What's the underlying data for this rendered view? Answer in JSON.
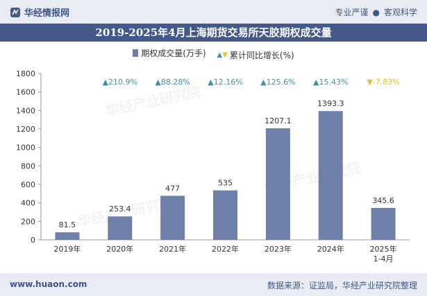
{
  "header": {
    "brand": "华经情报网",
    "tagline_left": "专业严谨",
    "tagline_right": "客观科学"
  },
  "title": "2019-2025年4月上海期货交易所天胶期权成交量",
  "legend": {
    "bar_label": "期权成交量(万手)",
    "line_label": "累计同比增长(%)"
  },
  "footer": {
    "website": "www.huaon.com",
    "source": "数据来源：证监局，华经产业研究院整理"
  },
  "colors": {
    "bar": "#6e7fa9",
    "up": "#3f93a2",
    "down": "#e8c12a",
    "header_bg": "#44598a"
  },
  "chart_data": {
    "type": "bar",
    "title": "2019-2025年4月上海期货交易所天胶期权成交量",
    "categories": [
      "2019年",
      "2020年",
      "2021年",
      "2022年",
      "2023年",
      "2024年",
      "2025年 1-4月"
    ],
    "category_lines": [
      [
        "2019年"
      ],
      [
        "2020年"
      ],
      [
        "2021年"
      ],
      [
        "2022年"
      ],
      [
        "2023年"
      ],
      [
        "2024年"
      ],
      [
        "2025年",
        "1-4月"
      ]
    ],
    "series": [
      {
        "name": "期权成交量(万手)",
        "values": [
          81.5,
          253.4,
          477,
          535,
          1207.1,
          1393.3,
          345.6
        ]
      }
    ],
    "value_labels": [
      "81.5",
      "253.4",
      "477",
      "535",
      "1207.1",
      "1393.3",
      "345.6"
    ],
    "growth": [
      {
        "text": "210.9%",
        "direction": "up"
      },
      {
        "text": "88.28%",
        "direction": "up"
      },
      {
        "text": "12.16%",
        "direction": "up"
      },
      {
        "text": "125.6%",
        "direction": "up"
      },
      {
        "text": "15.43%",
        "direction": "up"
      },
      {
        "text": "-7.83%",
        "direction": "down"
      }
    ],
    "growth_values": [
      210.9,
      88.28,
      12.16,
      125.6,
      15.43,
      -7.83
    ],
    "ylim": [
      0,
      1800
    ],
    "yticks": [
      0,
      200,
      400,
      600,
      800,
      1000,
      1200,
      1400,
      1600,
      1800
    ],
    "grid": false,
    "legend_position": "top-center",
    "xlabel": "",
    "ylabel": ""
  }
}
